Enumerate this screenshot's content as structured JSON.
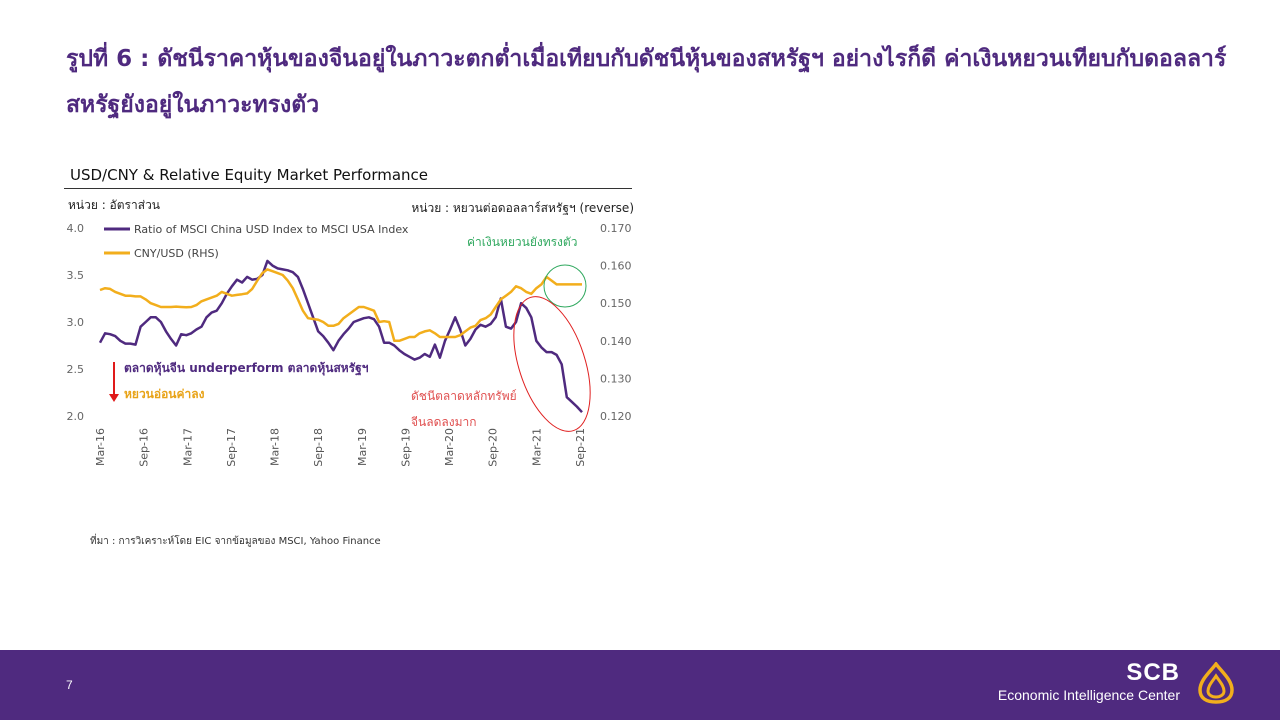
{
  "slide": {
    "title": "รูปที่ 6 : ดัชนีราคาหุ้นของจีนอยู่ในภาวะตกต่ำเมื่อเทียบกับดัชนีหุ้นของสหรัฐฯ อย่างไรก็ดี ค่าเงินหยวนเทียบกับดอลลาร์สหรัฐยังอยู่ในภาวะทรงตัว",
    "page_number": "7",
    "source": "ที่มา : การวิเคราะห์โดย EIC จากข้อมูลของ MSCI, Yahoo Finance",
    "brand_name": "SCB",
    "brand_sub": "Economic Intelligence Center"
  },
  "chart_data": {
    "type": "line",
    "title": "USD/CNY & Relative Equity Market Performance",
    "unit_left": "หน่วย : อัตราส่วน",
    "unit_right": "หน่วย : หยวนต่อดอลลาร์สหรัฐฯ (reverse)",
    "ylim_left": [
      2.0,
      4.0
    ],
    "yticks_left": [
      "4.0",
      "3.5",
      "3.0",
      "2.5",
      "2.0"
    ],
    "ylim_right": [
      0.12,
      0.17
    ],
    "y_right_reverse": false,
    "yticks_right": [
      "0.170",
      "0.160",
      "0.150",
      "0.140",
      "0.130",
      "0.120"
    ],
    "x_ticks": [
      "Mar-16",
      "Sep-16",
      "Mar-17",
      "Sep-17",
      "Mar-18",
      "Sep-18",
      "Mar-19",
      "Sep-19",
      "Mar-20",
      "Sep-20",
      "Mar-21",
      "Sep-21"
    ],
    "grid": false,
    "legend_position": "top-left",
    "series": [
      {
        "name": "Ratio of MSCI China USD Index to MSCI USA Index",
        "axis": "left",
        "color": "#4f2a7f",
        "values": [
          2.78,
          2.88,
          2.87,
          2.85,
          2.8,
          2.77,
          2.77,
          2.76,
          2.95,
          3.0,
          3.05,
          3.05,
          3.0,
          2.9,
          2.82,
          2.75,
          2.87,
          2.86,
          2.88,
          2.92,
          2.95,
          3.05,
          3.1,
          3.12,
          3.2,
          3.3,
          3.38,
          3.45,
          3.42,
          3.48,
          3.45,
          3.46,
          3.5,
          3.65,
          3.6,
          3.57,
          3.56,
          3.55,
          3.53,
          3.48,
          3.35,
          3.2,
          3.05,
          2.9,
          2.85,
          2.78,
          2.7,
          2.8,
          2.87,
          2.93,
          3.0,
          3.02,
          3.04,
          3.05,
          3.03,
          2.95,
          2.78,
          2.78,
          2.75,
          2.7,
          2.66,
          2.63,
          2.6,
          2.62,
          2.66,
          2.63,
          2.76,
          2.62,
          2.8,
          2.92,
          3.05,
          2.92,
          2.75,
          2.82,
          2.92,
          2.97,
          2.95,
          2.98,
          3.05,
          3.25,
          2.95,
          2.93,
          3.0,
          3.2,
          3.15,
          3.05,
          2.8,
          2.73,
          2.68,
          2.68,
          2.65,
          2.55,
          2.2,
          2.15,
          2.1,
          2.04
        ]
      },
      {
        "name": "CNY/USD (RHS)",
        "axis": "right",
        "color": "#f2ae1c",
        "values": [
          0.1535,
          0.154,
          0.1538,
          0.153,
          0.1525,
          0.152,
          0.152,
          0.1518,
          0.1518,
          0.151,
          0.15,
          0.1495,
          0.149,
          0.149,
          0.149,
          0.1491,
          0.149,
          0.1489,
          0.149,
          0.1495,
          0.1505,
          0.151,
          0.1515,
          0.152,
          0.153,
          0.1525,
          0.152,
          0.1522,
          0.1524,
          0.1526,
          0.1538,
          0.156,
          0.158,
          0.159,
          0.1585,
          0.158,
          0.1575,
          0.156,
          0.154,
          0.151,
          0.148,
          0.146,
          0.1458,
          0.1456,
          0.145,
          0.144,
          0.144,
          0.1445,
          0.146,
          0.147,
          0.148,
          0.149,
          0.149,
          0.1485,
          0.148,
          0.145,
          0.1452,
          0.145,
          0.14,
          0.14,
          0.1405,
          0.141,
          0.141,
          0.142,
          0.1425,
          0.1428,
          0.142,
          0.141,
          0.141,
          0.141,
          0.141,
          0.1415,
          0.1425,
          0.1435,
          0.144,
          0.1455,
          0.146,
          0.147,
          0.149,
          0.151,
          0.152,
          0.153,
          0.1545,
          0.154,
          0.153,
          0.1525,
          0.154,
          0.155,
          0.157,
          0.156,
          0.155,
          0.155,
          0.155,
          0.155,
          0.155,
          0.155
        ]
      }
    ],
    "annotations": {
      "green": "ค่าเงินหยวนยังทรงตัว",
      "purple": "ตลาดหุ้นจีน underperform ตลาดหุ้นสหรัฐฯ",
      "yellow": "หยวนอ่อนค่าลง",
      "red_line1": "ดัชนีตลาดหลักทรัพย์",
      "red_line2": "จีนลดลงมาก"
    }
  }
}
